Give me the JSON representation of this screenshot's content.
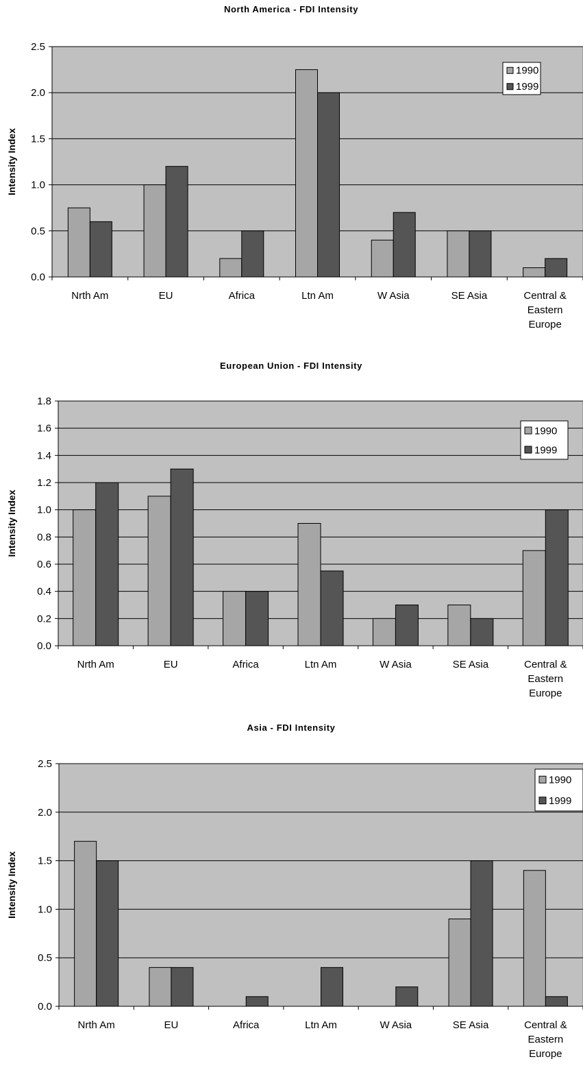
{
  "chart_data": [
    {
      "type": "bar",
      "title": "North America - FDI Intensity",
      "ylabel": "Intensity Index",
      "xlabel": "",
      "ylim": [
        0,
        2.5
      ],
      "yticks": [
        "0.0",
        "0.5",
        "1.0",
        "1.5",
        "2.0",
        "2.5"
      ],
      "ytick_values": [
        0,
        0.5,
        1.0,
        1.5,
        2.0,
        2.5
      ],
      "categories": [
        "Nrth Am",
        "EU",
        "Africa",
        "Ltn Am",
        "W Asia",
        "SE Asia",
        "Central & Eastern Europe"
      ],
      "series": [
        {
          "name": "1990",
          "color": "#a6a6a6",
          "values": [
            0.75,
            1.0,
            0.2,
            2.25,
            0.4,
            0.5,
            0.1
          ]
        },
        {
          "name": "1999",
          "color": "#555555",
          "values": [
            0.6,
            1.2,
            0.5,
            2.0,
            0.7,
            0.5,
            0.2
          ]
        }
      ],
      "grid": true,
      "plot_background": "#c0c0c0",
      "legend": "top-right"
    },
    {
      "type": "bar",
      "title": "European Union - FDI Intensity",
      "ylabel": "Intensity Index",
      "xlabel": "",
      "ylim": [
        0,
        1.8
      ],
      "yticks": [
        "0.0",
        "0.2",
        "0.4",
        "0.6",
        "0.8",
        "1.0",
        "1.2",
        "1.4",
        "1.6",
        "1.8"
      ],
      "ytick_values": [
        0,
        0.2,
        0.4,
        0.6,
        0.8,
        1.0,
        1.2,
        1.4,
        1.6,
        1.8
      ],
      "categories": [
        "Nrth Am",
        "EU",
        "Africa",
        "Ltn Am",
        "W Asia",
        "SE Asia",
        "Central & Eastern Europe"
      ],
      "series": [
        {
          "name": "1990",
          "color": "#a6a6a6",
          "values": [
            1.0,
            1.1,
            0.4,
            0.9,
            0.2,
            0.3,
            0.7
          ]
        },
        {
          "name": "1999",
          "color": "#555555",
          "values": [
            1.2,
            1.3,
            0.4,
            0.55,
            0.3,
            0.2,
            1.0
          ]
        }
      ],
      "grid": true,
      "plot_background": "#c0c0c0",
      "legend": "top-right"
    },
    {
      "type": "bar",
      "title": "Asia - FDI Intensity",
      "ylabel": "Intensity Index",
      "xlabel": "",
      "ylim": [
        0,
        2.5
      ],
      "yticks": [
        "0.0",
        "0.5",
        "1.0",
        "1.5",
        "2.0",
        "2.5"
      ],
      "ytick_values": [
        0,
        0.5,
        1.0,
        1.5,
        2.0,
        2.5
      ],
      "categories": [
        "Nrth Am",
        "EU",
        "Africa",
        "Ltn Am",
        "W Asia",
        "SE Asia",
        "Central & Eastern Europe"
      ],
      "series": [
        {
          "name": "1990",
          "color": "#a6a6a6",
          "values": [
            1.7,
            0.4,
            0.0,
            0.0,
            0.0,
            0.9,
            1.4
          ]
        },
        {
          "name": "1999",
          "color": "#555555",
          "values": [
            1.5,
            0.4,
            0.1,
            0.4,
            0.2,
            1.5,
            0.1
          ]
        }
      ],
      "grid": true,
      "plot_background": "#c0c0c0",
      "legend": "top-right"
    }
  ]
}
